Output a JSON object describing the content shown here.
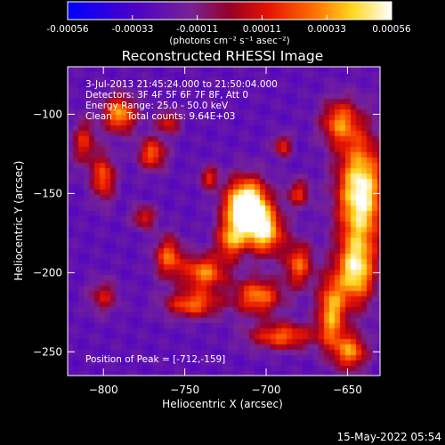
{
  "chart_data": {
    "type": "heatmap",
    "title": "Reconstructed RHESSI Image",
    "xlabel": "Heliocentric X (arcsec)",
    "ylabel": "Heliocentric Y (arcsec)",
    "xlim": [
      -822,
      -630
    ],
    "ylim": [
      -265,
      -70
    ],
    "xticks": [
      -800,
      -750,
      -700,
      -650
    ],
    "yticks": [
      -100,
      -150,
      -200,
      -250
    ],
    "colorbar": {
      "colormap": "red-temperature (blue-purple-red-yellow-white)",
      "range": [
        -0.00056,
        0.00056
      ],
      "ticks": [
        "-0.00056",
        "-0.00033",
        "-0.00011",
        "0.00011",
        "0.00033",
        "0.00056"
      ],
      "unit_label": "(photons cm⁻² s⁻¹ asec⁻²)"
    },
    "annotations": {
      "time": "3-Jul-2013 21:45:24.000 to 21:50:04.000",
      "detectors": "Detectors: 3F 4F 5F 6F 7F 8F, Att 0",
      "energy": "Energy Range: 25.0 - 50.0 keV",
      "clean": "Clean     Total counts: 9.64E+03",
      "peak": "Position of Peak = [-712,-159]"
    },
    "peak_position": [
      -712,
      -159
    ],
    "sources": [
      {
        "x": -712,
        "y": -159,
        "sx": 9,
        "sy": 12,
        "amp": 1.0
      },
      {
        "x": -700,
        "y": -175,
        "sx": 8,
        "sy": 10,
        "amp": 0.55
      },
      {
        "x": -722,
        "y": -180,
        "sx": 6,
        "sy": 8,
        "amp": 0.45
      },
      {
        "x": -738,
        "y": -200,
        "sx": 10,
        "sy": 8,
        "amp": 0.5
      },
      {
        "x": -760,
        "y": -190,
        "sx": 6,
        "sy": 9,
        "amp": 0.45
      },
      {
        "x": -745,
        "y": -220,
        "sx": 12,
        "sy": 6,
        "amp": 0.45
      },
      {
        "x": -705,
        "y": -215,
        "sx": 10,
        "sy": 8,
        "amp": 0.5
      },
      {
        "x": -680,
        "y": -195,
        "sx": 6,
        "sy": 10,
        "amp": 0.45
      },
      {
        "x": -690,
        "y": -240,
        "sx": 14,
        "sy": 6,
        "amp": 0.45
      },
      {
        "x": -660,
        "y": -225,
        "sx": 6,
        "sy": 16,
        "amp": 0.55
      },
      {
        "x": -642,
        "y": -150,
        "sx": 10,
        "sy": 25,
        "amp": 0.75
      },
      {
        "x": -645,
        "y": -200,
        "sx": 8,
        "sy": 15,
        "amp": 0.6
      },
      {
        "x": -648,
        "y": -250,
        "sx": 7,
        "sy": 8,
        "amp": 0.5
      },
      {
        "x": -655,
        "y": -105,
        "sx": 8,
        "sy": 10,
        "amp": 0.45
      },
      {
        "x": -790,
        "y": -100,
        "sx": 7,
        "sy": 8,
        "amp": 0.55
      },
      {
        "x": -770,
        "y": -125,
        "sx": 6,
        "sy": 7,
        "amp": 0.45
      },
      {
        "x": -800,
        "y": -140,
        "sx": 5,
        "sy": 10,
        "amp": 0.45
      },
      {
        "x": -812,
        "y": -118,
        "sx": 5,
        "sy": 10,
        "amp": 0.35
      },
      {
        "x": -760,
        "y": -105,
        "sx": 5,
        "sy": 5,
        "amp": 0.35
      },
      {
        "x": -735,
        "y": -140,
        "sx": 4,
        "sy": 5,
        "amp": 0.35
      },
      {
        "x": -690,
        "y": -120,
        "sx": 4,
        "sy": 5,
        "amp": 0.35
      },
      {
        "x": -775,
        "y": -165,
        "sx": 5,
        "sy": 5,
        "amp": 0.35
      },
      {
        "x": -800,
        "y": -215,
        "sx": 6,
        "sy": 7,
        "amp": 0.3
      },
      {
        "x": -680,
        "y": -150,
        "sx": 5,
        "sy": 6,
        "amp": 0.35
      }
    ]
  },
  "footer": {
    "timestamp": "15-May-2022 05:54"
  }
}
